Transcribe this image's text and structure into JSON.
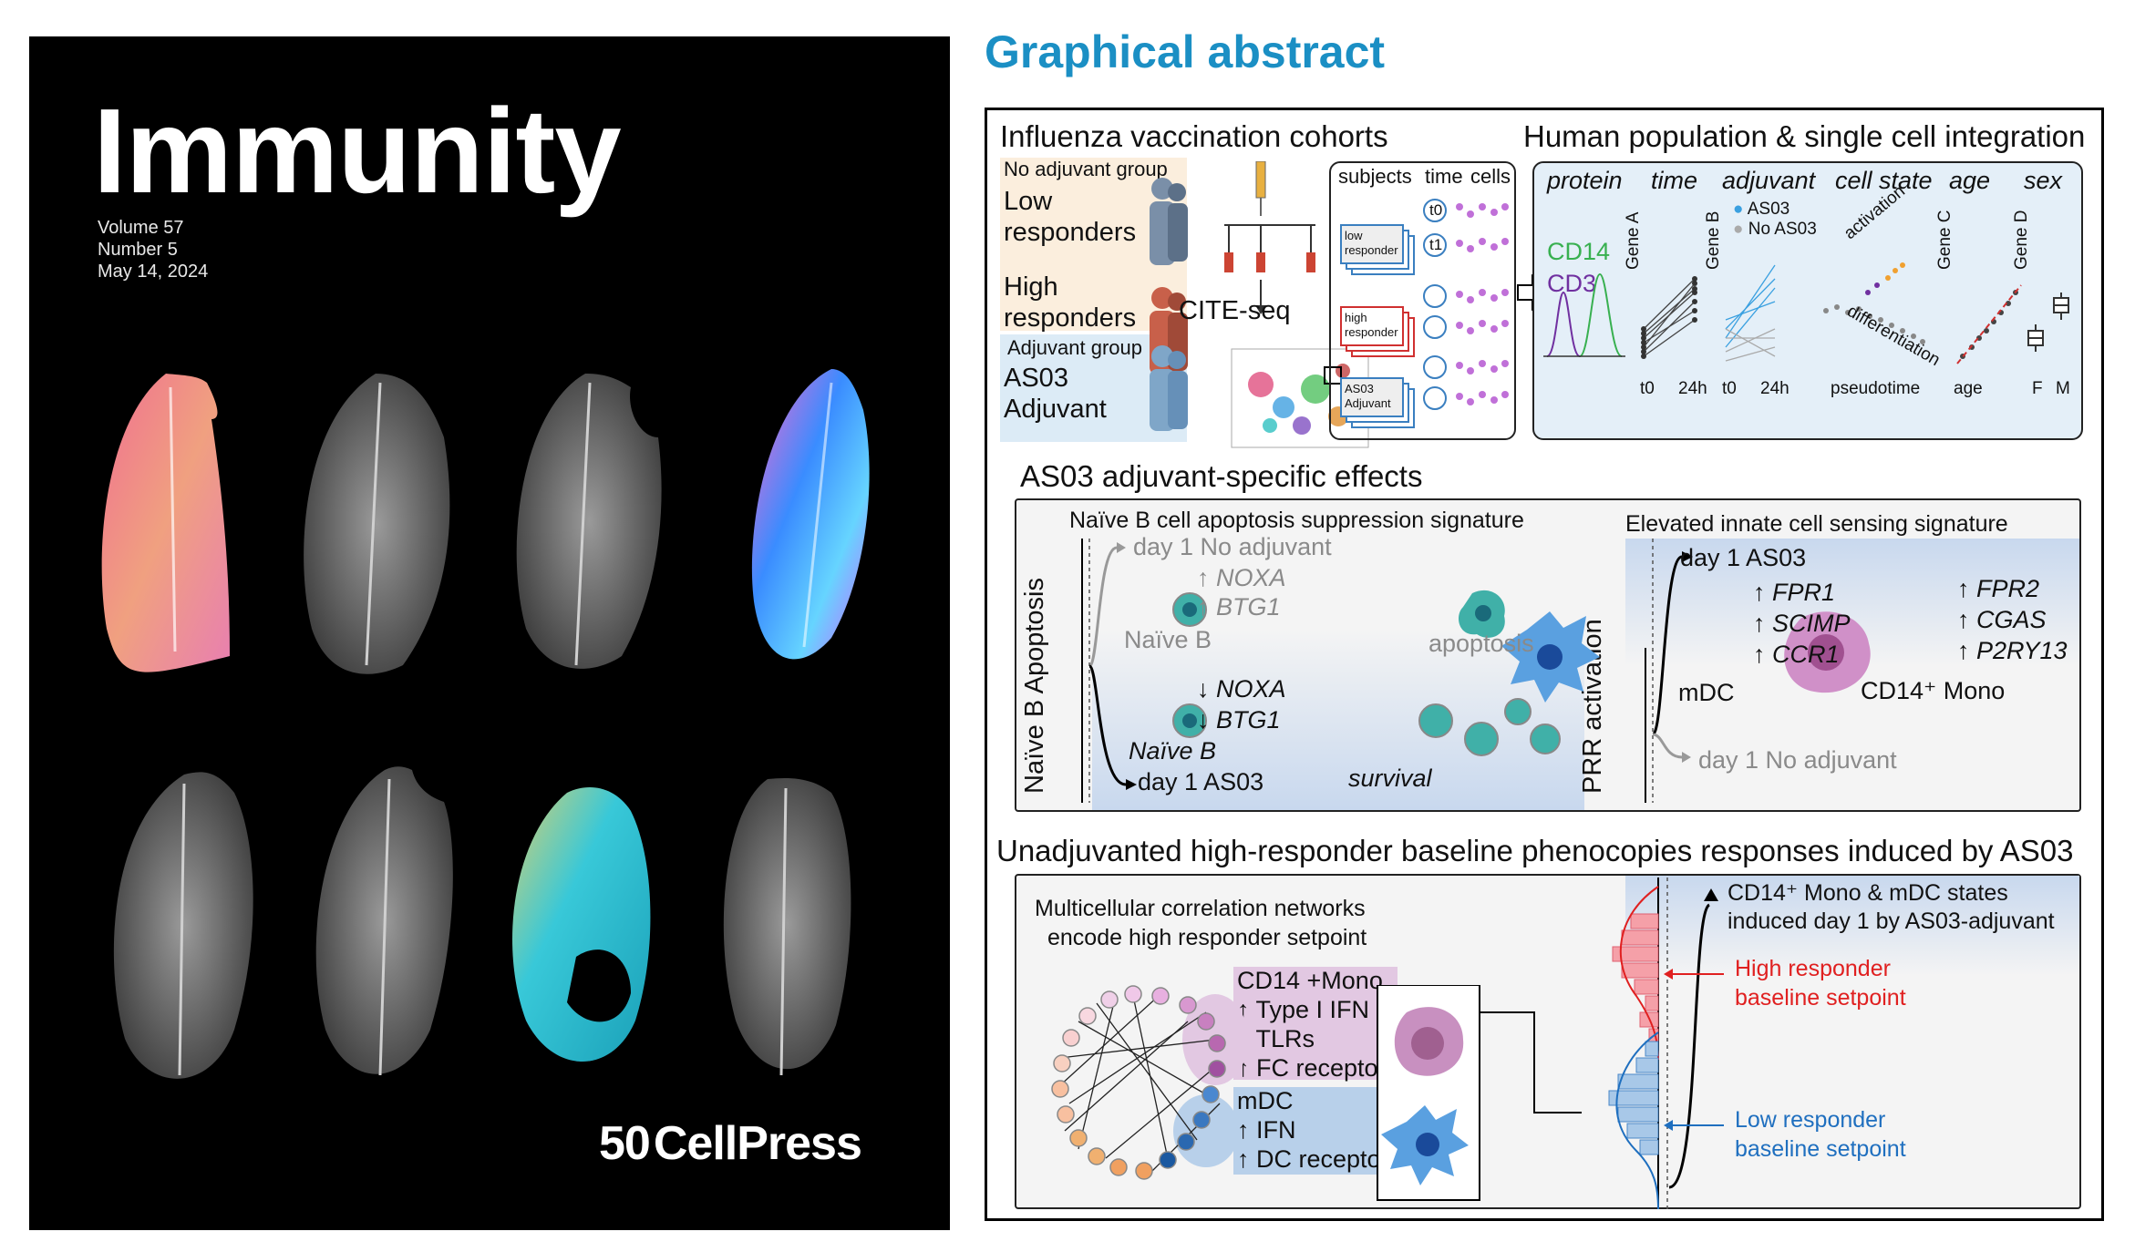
{
  "cover": {
    "journal": "Immunity",
    "volume": "Volume 57",
    "number": "Number 5",
    "date": "May 14, 2024",
    "publisher_mark": "50",
    "publisher": "CellPress"
  },
  "abstract": {
    "heading": "Graphical abstract",
    "cohorts": {
      "title": "Influenza vaccination cohorts",
      "no_adjuvant_group": "No adjuvant group",
      "low_responders": [
        "Low",
        "responders"
      ],
      "high_responders": [
        "High",
        "responders"
      ],
      "adjuvant_group": "Adjuvant group",
      "as03_adjuvant": [
        "AS03",
        "Adjuvant"
      ],
      "cite_seq": "CITE-seq",
      "table_headers": [
        "subjects",
        "time",
        "cells"
      ],
      "stack_labels": [
        [
          "low",
          "responder"
        ],
        [
          "high",
          "responder"
        ],
        [
          "AS03",
          "Adjuvant"
        ]
      ],
      "t0": "t0",
      "t1": "t1"
    },
    "integration": {
      "title": "Human population & single cell integration",
      "columns": [
        "protein",
        "time",
        "adjuvant",
        "cell state",
        "age",
        "sex"
      ],
      "protein_labels": [
        "CD14",
        "CD3"
      ],
      "legend": [
        "AS03",
        "No AS03"
      ],
      "gene_labels": [
        "Gene A",
        "Gene B",
        "Gene C",
        "Gene D"
      ],
      "time_ticks": [
        "t0",
        "24h",
        "t0",
        "24h"
      ],
      "state_labels": [
        "activation",
        "differentiation"
      ],
      "x_labels": [
        "pseudotime",
        "age"
      ],
      "sex_ticks": [
        "F",
        "M"
      ]
    },
    "specific": {
      "title": "AS03 adjuvant-specific effects",
      "left_title": "Naïve B cell apoptosis suppression signature",
      "left_axis": "Naïve B Apoptosis",
      "day1_no_adj": "day 1 No adjuvant",
      "up_genes": [
        "↑ NOXA",
        "↑ BTG1"
      ],
      "naive_b": "Naïve B",
      "apoptosis": "apoptosis",
      "down_genes": [
        "↓ NOXA",
        "↓ BTG1"
      ],
      "naive_b_2": "Naïve B",
      "day1_as03": "day 1 AS03",
      "survival": "survival",
      "right_title": "Elevated innate cell sensing signature",
      "right_axis": "PRR activation",
      "day1_as03_r": "day 1 AS03",
      "mdc_genes": [
        "↑ FPR1",
        "↑ SCIMP",
        "↑ CCR1"
      ],
      "mdc": "mDC",
      "mono_genes": [
        "↑ FPR2",
        "↑ CGAS",
        "↑ P2RY13"
      ],
      "mono_label": "CD14⁺ Mono",
      "day1_no_adj_r": "day 1 No adjuvant"
    },
    "baseline": {
      "title": "Unadjuvanted high-responder baseline phenocopies responses induced by AS03",
      "network_title": [
        "Multicellular correlation networks",
        "encode high responder setpoint"
      ],
      "mono_block": [
        "CD14 +Mono",
        "↑ Type I IFN",
        "↑ TLRs",
        "↑ FC receptors"
      ],
      "mdc_block": [
        "mDC",
        "↑ IFN",
        "↑ DC receptors"
      ],
      "induced": [
        "CD14⁺ Mono & mDC states",
        "induced day 1 by AS03-adjuvant"
      ],
      "high_setpoint": [
        "High responder",
        "baseline setpoint"
      ],
      "low_setpoint": [
        "Low responder",
        "baseline setpoint"
      ]
    }
  },
  "colors": {
    "accent_blue": "#1b8fc4",
    "high_red": "#e02020",
    "low_blue": "#1f6fbf"
  }
}
